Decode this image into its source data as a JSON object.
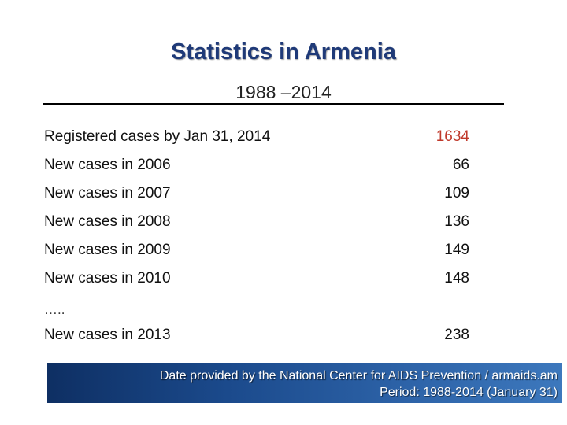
{
  "slide": {
    "title": "Statistics in Armenia",
    "subtitle": "1988 –2014"
  },
  "rows": [
    {
      "label": "Registered cases by Jan 31, 2014",
      "value": "1634"
    },
    {
      "label": "New cases in 2006",
      "value": "66"
    },
    {
      "label": "New cases in 2007",
      "value": "109"
    },
    {
      "label": "New cases in 2008",
      "value": "136"
    },
    {
      "label": "New cases in 2009",
      "value": "149"
    },
    {
      "label": "New cases in 2010",
      "value": "148"
    },
    {
      "label": "New cases in 2013",
      "value": "238"
    }
  ],
  "ellipsis": "…..",
  "footer": {
    "line1": "Date provided by the National Center for AIDS Prevention / armaids.am",
    "line2": "Period: 1988-2014 (January 31)"
  },
  "colors": {
    "title": "#1f3a78",
    "highlight_value": "#c0392b",
    "footer_band": "#1b4a8c"
  }
}
